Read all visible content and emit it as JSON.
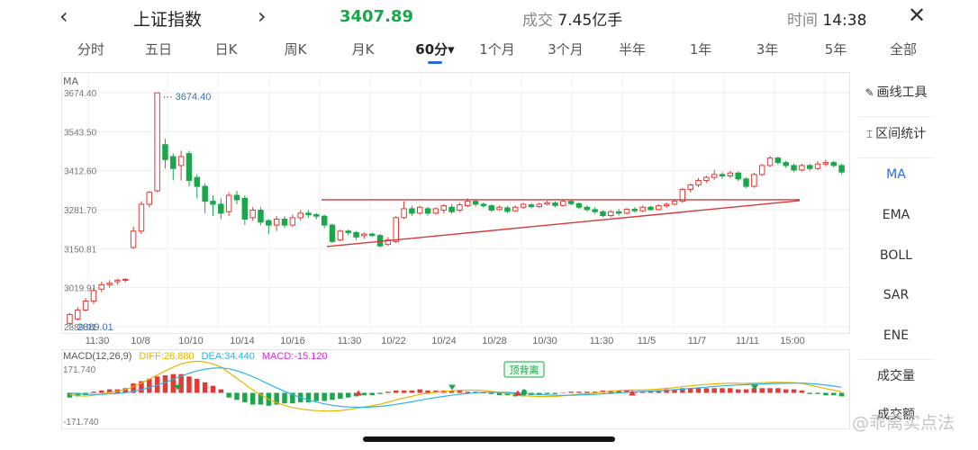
{
  "header": {
    "back_icon": "chevron-left-icon",
    "title": "上证指数",
    "forward_icon": "chevron-right-icon",
    "price": "3407.89",
    "price_color": "#1aa64a",
    "volume_label": "成交",
    "volume_value": "7.45亿手",
    "time_label": "时间",
    "time_value": "14:38",
    "close_icon": "close-icon"
  },
  "tabs": [
    {
      "label": "分时"
    },
    {
      "label": "五日"
    },
    {
      "label": "日K"
    },
    {
      "label": "周K"
    },
    {
      "label": "月K"
    },
    {
      "label": "60分▾",
      "active": true
    },
    {
      "label": "1个月"
    },
    {
      "label": "3个月"
    },
    {
      "label": "半年"
    },
    {
      "label": "1年"
    },
    {
      "label": "3年"
    },
    {
      "label": "5年"
    },
    {
      "label": "全部"
    }
  ],
  "indicator_label": "MA",
  "sidebar": {
    "items": [
      {
        "label": "画线工具",
        "icon": "pencil-icon"
      },
      {
        "label": "区间统计",
        "icon": "range-stats-icon"
      },
      {
        "label": "MA",
        "active": true
      },
      {
        "label": "EMA"
      },
      {
        "label": "BOLL"
      },
      {
        "label": "SAR"
      },
      {
        "label": "ENE"
      },
      {
        "label": "成交量"
      },
      {
        "label": "成交额"
      }
    ]
  },
  "macd": {
    "title": "MACD(12,26,9)",
    "diff": "DIFF:26.880",
    "dea": "DEA:34.440",
    "macd": "MACD:-15.120",
    "top_label": "171.740",
    "bottom_label": "-171.740",
    "annotation": "顶背离"
  },
  "watermark": "@乖离实点法",
  "colors": {
    "up": "#e53935",
    "down": "#1aa64a",
    "diff": "#e8b400",
    "dea": "#2bb3e6",
    "macd": "#d12fd1",
    "accent": "#2a6bd9"
  },
  "chart_data": {
    "type": "candlestick",
    "y_tick_labels": [
      "3674.40",
      "3543.50",
      "3412.60",
      "3281.70",
      "3150.81",
      "3019.91",
      "2889.01"
    ],
    "x_tick_labels": [
      "11:30",
      "10/8",
      "10/10",
      "10/14",
      "10/16",
      "11:30",
      "10/22",
      "10/24",
      "10/28",
      "10/30",
      "11:30",
      "11/5",
      "11/7",
      "11/11",
      "15:00"
    ],
    "max_label": "3674.40",
    "min_label": "2889.01",
    "ylim": [
      2889.01,
      3674.4
    ],
    "candles": [
      [
        2900,
        2930,
        2895,
        2935
      ],
      [
        2915,
        2945,
        2910,
        2955
      ],
      [
        2945,
        2975,
        2940,
        2985
      ],
      [
        2975,
        3010,
        2965,
        3020
      ],
      [
        3015,
        3030,
        3005,
        3040
      ],
      [
        3030,
        3035,
        3020,
        3045
      ],
      [
        3040,
        3045,
        3030,
        3050
      ],
      [
        3045,
        3048,
        3038,
        3052
      ],
      [
        3155,
        3210,
        3150,
        3225
      ],
      [
        3210,
        3300,
        3200,
        3310
      ],
      [
        3300,
        3340,
        3290,
        3345
      ],
      [
        3345,
        3674,
        3340,
        3674
      ],
      [
        3500,
        3450,
        3420,
        3520
      ],
      [
        3460,
        3420,
        3380,
        3470
      ],
      [
        3430,
        3460,
        3380,
        3480
      ],
      [
        3470,
        3380,
        3360,
        3480
      ],
      [
        3390,
        3360,
        3320,
        3400
      ],
      [
        3360,
        3310,
        3270,
        3370
      ],
      [
        3310,
        3300,
        3260,
        3330
      ],
      [
        3300,
        3270,
        3250,
        3320
      ],
      [
        3275,
        3330,
        3260,
        3340
      ],
      [
        3330,
        3315,
        3300,
        3345
      ],
      [
        3320,
        3250,
        3230,
        3330
      ],
      [
        3255,
        3280,
        3245,
        3290
      ],
      [
        3280,
        3240,
        3230,
        3290
      ],
      [
        3245,
        3230,
        3200,
        3250
      ],
      [
        3230,
        3250,
        3210,
        3260
      ],
      [
        3250,
        3230,
        3220,
        3260
      ],
      [
        3230,
        3255,
        3225,
        3265
      ],
      [
        3255,
        3270,
        3245,
        3280
      ],
      [
        3270,
        3265,
        3255,
        3280
      ],
      [
        3265,
        3260,
        3250,
        3270
      ],
      [
        3260,
        3230,
        3220,
        3265
      ],
      [
        3230,
        3175,
        3170,
        3235
      ],
      [
        3180,
        3210,
        3175,
        3215
      ],
      [
        3210,
        3205,
        3195,
        3215
      ],
      [
        3205,
        3190,
        3180,
        3210
      ],
      [
        3195,
        3200,
        3185,
        3205
      ],
      [
        3200,
        3195,
        3190,
        3205
      ],
      [
        3195,
        3160,
        3155,
        3200
      ],
      [
        3165,
        3180,
        3160,
        3190
      ],
      [
        3175,
        3255,
        3170,
        3260
      ],
      [
        3255,
        3285,
        3250,
        3310
      ],
      [
        3285,
        3270,
        3260,
        3295
      ],
      [
        3270,
        3290,
        3265,
        3295
      ],
      [
        3285,
        3270,
        3262,
        3292
      ],
      [
        3270,
        3285,
        3265,
        3290
      ],
      [
        3280,
        3295,
        3270,
        3300
      ],
      [
        3290,
        3275,
        3268,
        3300
      ],
      [
        3280,
        3298,
        3275,
        3305
      ],
      [
        3295,
        3310,
        3290,
        3320
      ],
      [
        3310,
        3300,
        3292,
        3315
      ],
      [
        3300,
        3295,
        3288,
        3306
      ],
      [
        3295,
        3280,
        3274,
        3300
      ],
      [
        3282,
        3290,
        3278,
        3296
      ],
      [
        3288,
        3276,
        3270,
        3294
      ],
      [
        3278,
        3290,
        3274,
        3296
      ],
      [
        3290,
        3300,
        3285,
        3305
      ],
      [
        3298,
        3292,
        3286,
        3304
      ],
      [
        3292,
        3300,
        3288,
        3306
      ],
      [
        3300,
        3305,
        3296,
        3312
      ],
      [
        3304,
        3296,
        3290,
        3310
      ],
      [
        3296,
        3310,
        3292,
        3318
      ],
      [
        3310,
        3302,
        3296,
        3314
      ],
      [
        3302,
        3290,
        3284,
        3306
      ],
      [
        3290,
        3282,
        3276,
        3296
      ],
      [
        3282,
        3275,
        3268,
        3290
      ],
      [
        3275,
        3262,
        3256,
        3280
      ],
      [
        3262,
        3275,
        3256,
        3280
      ],
      [
        3275,
        3270,
        3262,
        3284
      ],
      [
        3270,
        3283,
        3265,
        3288
      ],
      [
        3283,
        3278,
        3272,
        3290
      ],
      [
        3278,
        3290,
        3274,
        3296
      ],
      [
        3290,
        3282,
        3278,
        3295
      ],
      [
        3282,
        3295,
        3278,
        3300
      ],
      [
        3295,
        3300,
        3288,
        3306
      ],
      [
        3300,
        3310,
        3296,
        3314
      ],
      [
        3310,
        3350,
        3305,
        3355
      ],
      [
        3350,
        3365,
        3340,
        3370
      ],
      [
        3365,
        3380,
        3358,
        3388
      ],
      [
        3380,
        3390,
        3372,
        3396
      ],
      [
        3390,
        3400,
        3382,
        3415
      ],
      [
        3400,
        3395,
        3385,
        3408
      ],
      [
        3395,
        3405,
        3388,
        3412
      ],
      [
        3405,
        3385,
        3378,
        3410
      ],
      [
        3385,
        3360,
        3354,
        3390
      ],
      [
        3360,
        3400,
        3355,
        3405
      ],
      [
        3400,
        3430,
        3395,
        3435
      ],
      [
        3430,
        3455,
        3425,
        3462
      ],
      [
        3455,
        3440,
        3432,
        3460
      ],
      [
        3440,
        3430,
        3422,
        3446
      ],
      [
        3430,
        3415,
        3408,
        3436
      ],
      [
        3415,
        3430,
        3410,
        3436
      ],
      [
        3430,
        3420,
        3412,
        3436
      ],
      [
        3420,
        3435,
        3415,
        3445
      ],
      [
        3435,
        3440,
        3428,
        3450
      ],
      [
        3440,
        3430,
        3424,
        3446
      ],
      [
        3430,
        3408,
        3400,
        3436
      ]
    ],
    "macd_hist": [
      -4,
      -3,
      -2,
      1,
      2,
      3,
      3,
      4,
      8,
      10,
      12,
      14,
      15,
      16,
      16,
      14,
      12,
      9,
      6,
      3,
      -4,
      -6,
      -8,
      -10,
      -10,
      -11,
      -10,
      -9,
      -9,
      -8,
      -8,
      -7,
      -7,
      -6,
      -5,
      -4,
      -3,
      -2,
      -2,
      -1,
      1,
      2,
      2,
      2,
      3,
      2,
      2,
      2,
      2,
      2,
      1,
      1,
      0,
      -1,
      -2,
      -2,
      -3,
      -3,
      -2,
      -2,
      -1,
      -1,
      0,
      1,
      1,
      1,
      1,
      2,
      2,
      2,
      2,
      1,
      1,
      2,
      2,
      3,
      3,
      4,
      4,
      4,
      4,
      4,
      4,
      4,
      3,
      3,
      4,
      4,
      4,
      4,
      3,
      3,
      2,
      -1,
      -1,
      -2,
      -2,
      -3
    ]
  }
}
